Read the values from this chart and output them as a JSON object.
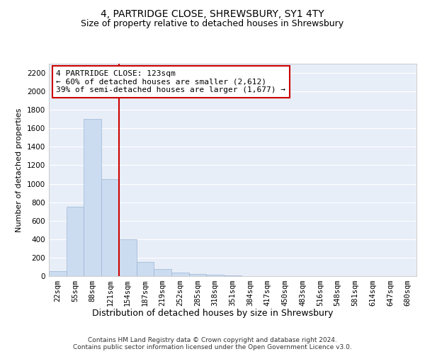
{
  "title1": "4, PARTRIDGE CLOSE, SHREWSBURY, SY1 4TY",
  "title2": "Size of property relative to detached houses in Shrewsbury",
  "xlabel": "Distribution of detached houses by size in Shrewsbury",
  "ylabel": "Number of detached properties",
  "bin_labels": [
    "22sqm",
    "55sqm",
    "88sqm",
    "121sqm",
    "154sqm",
    "187sqm",
    "219sqm",
    "252sqm",
    "285sqm",
    "318sqm",
    "351sqm",
    "384sqm",
    "417sqm",
    "450sqm",
    "483sqm",
    "516sqm",
    "548sqm",
    "581sqm",
    "614sqm",
    "647sqm",
    "680sqm"
  ],
  "bar_heights": [
    50,
    750,
    1700,
    1050,
    400,
    150,
    75,
    35,
    25,
    15,
    5,
    2,
    2,
    0,
    0,
    0,
    0,
    0,
    0,
    0,
    0
  ],
  "bar_color": "#ccdcf0",
  "bar_edge_color": "#9ab5d5",
  "vline_color": "#cc0000",
  "annotation_text": "4 PARTRIDGE CLOSE: 123sqm\n← 60% of detached houses are smaller (2,612)\n39% of semi-detached houses are larger (1,677) →",
  "annotation_box_color": "#ffffff",
  "annotation_box_edge": "#cc0000",
  "ylim": [
    0,
    2300
  ],
  "yticks": [
    0,
    200,
    400,
    600,
    800,
    1000,
    1200,
    1400,
    1600,
    1800,
    2000,
    2200
  ],
  "bg_color": "#e8eef8",
  "footer_text": "Contains HM Land Registry data © Crown copyright and database right 2024.\nContains public sector information licensed under the Open Government Licence v3.0.",
  "title1_fontsize": 10,
  "title2_fontsize": 9,
  "xlabel_fontsize": 9,
  "ylabel_fontsize": 8,
  "tick_fontsize": 7.5,
  "annotation_fontsize": 8,
  "footer_fontsize": 6.5
}
